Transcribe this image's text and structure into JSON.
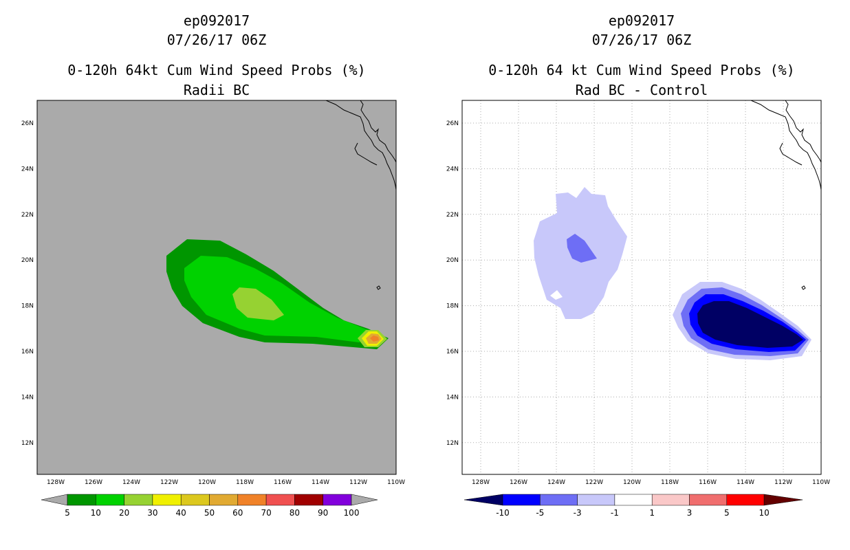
{
  "left": {
    "title": [
      "ep092017",
      "07/26/17 06Z",
      "0-120h 64kt Cum Wind Speed Probs (%)",
      "Radii BC"
    ],
    "legend": {
      "labels": [
        "5",
        "10",
        "20",
        "30",
        "40",
        "50",
        "60",
        "70",
        "80",
        "90",
        "100"
      ],
      "colors": [
        "#009600",
        "#00d200",
        "#96d232",
        "#f0f000",
        "#dcc81e",
        "#e1aa32",
        "#f08228",
        "#f05050",
        "#a00000",
        "#8200dc"
      ],
      "arrow_color": "#aaaaaa"
    },
    "background": "#aaaaaa"
  },
  "right": {
    "title": [
      "ep092017",
      "07/26/17 06Z",
      "0-120h 64 kt Cum Wind Speed Probs (%)",
      "Rad BC - Control"
    ],
    "legend": {
      "labels": [
        "-10",
        "-5",
        "-3",
        "-1",
        "1",
        "3",
        "5",
        "10"
      ],
      "colors": [
        "#0000ff",
        "#6e6ef5",
        "#c8c8fa",
        "#ffffff",
        "#fac8c8",
        "#f06e6e",
        "#ff0000"
      ],
      "left_arrow": "#000064",
      "right_arrow": "#640000"
    },
    "background": "#ffffff"
  },
  "axes": {
    "lon_labels": [
      "128W",
      "126W",
      "124W",
      "122W",
      "120W",
      "118W",
      "116W",
      "114W",
      "112W",
      "110W"
    ],
    "lat_labels": [
      "26N",
      "24N",
      "22N",
      "20N",
      "18N",
      "16N",
      "14N",
      "12N"
    ],
    "lon_values": [
      -128,
      -126,
      -124,
      -122,
      -120,
      -118,
      -116,
      -114,
      -112,
      -110
    ],
    "lat_values": [
      26,
      24,
      22,
      20,
      18,
      16,
      14,
      12
    ]
  }
}
